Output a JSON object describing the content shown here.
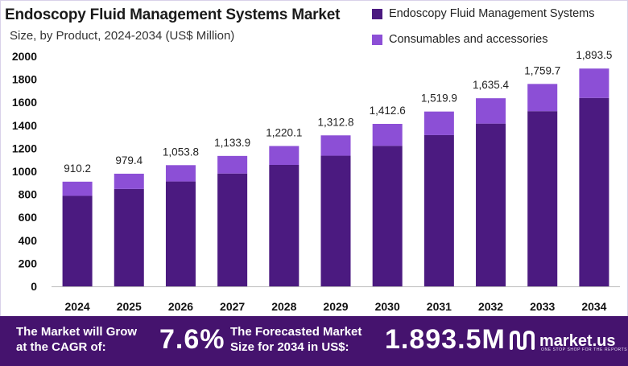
{
  "title": "Endoscopy Fluid Management Systems Market",
  "subtitle": "Size, by Product, 2024-2034 (US$ Million)",
  "legend": [
    {
      "label": "Endoscopy Fluid Management Systems",
      "color": "#4b1a80"
    },
    {
      "label": "Consumables and accessories",
      "color": "#8c4fd6"
    }
  ],
  "chart_data": {
    "type": "bar",
    "stacked": true,
    "categories": [
      "2024",
      "2025",
      "2026",
      "2027",
      "2028",
      "2029",
      "2030",
      "2031",
      "2032",
      "2033",
      "2034"
    ],
    "series": [
      {
        "name": "Endoscopy Fluid Management Systems",
        "color": "#4b1a80",
        "values": [
          787,
          847,
          912,
          981,
          1056,
          1136,
          1222,
          1315,
          1415,
          1523,
          1638
        ]
      },
      {
        "name": "Consumables and accessories",
        "color": "#8c4fd6",
        "values": [
          123.2,
          132.4,
          141.8,
          152.9,
          164.1,
          176.8,
          190.6,
          204.9,
          220.4,
          236.7,
          255.5
        ]
      }
    ],
    "totals": [
      910.2,
      979.4,
      1053.8,
      1133.9,
      1220.1,
      1312.8,
      1412.6,
      1519.9,
      1635.4,
      1759.7,
      1893.5
    ],
    "total_labels": [
      "910.2",
      "979.4",
      "1,053.8",
      "1,133.9",
      "1,220.1",
      "1,312.8",
      "1,412.6",
      "1,519.9",
      "1,635.4",
      "1,759.7",
      "1,893.5"
    ],
    "yticks": [
      "0",
      "200",
      "400",
      "600",
      "800",
      "1000",
      "1200",
      "1400",
      "1600",
      "1800",
      "2000"
    ],
    "ylim": [
      0,
      2000
    ],
    "grid": false
  },
  "banner": {
    "cagr_label_line1": "The Market will Grow",
    "cagr_label_line2": "at the CAGR of:",
    "cagr_value": "7.6%",
    "forecast_label_line1": "The Forecasted Market",
    "forecast_label_line2": "Size for 2034 in US$:",
    "forecast_value": "1.893.5M",
    "brand": "market.us",
    "brand_tagline": "ONE STOP SHOP FOR THE REPORTS"
  }
}
